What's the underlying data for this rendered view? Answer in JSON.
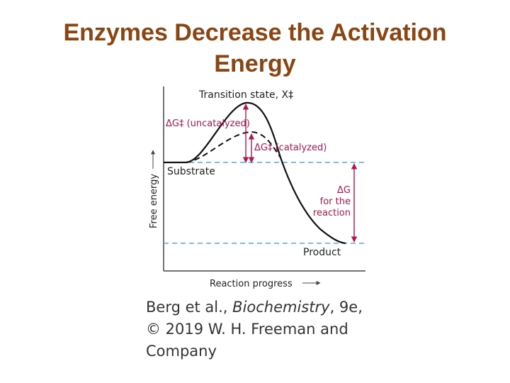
{
  "title": {
    "line1": "Enzymes Decrease the Activation",
    "line2": "Energy"
  },
  "diagram": {
    "transition_state_label": "Transition state, X‡",
    "uncatalyzed_label": "ΔG‡ (uncatalyzed)",
    "catalyzed_label": "ΔG‡ (catalyzed)",
    "substrate_label": "Substrate",
    "product_label": "Product",
    "dg_reaction_label": [
      "ΔG",
      "for the",
      "reaction"
    ],
    "y_axis_label": "Free energy",
    "x_axis_label": "Reaction progress",
    "colors": {
      "axis": "#444444",
      "uncatalyzed_curve": "#111111",
      "catalyzed_curve": "#111111",
      "reference_lines": "#5aa9d6",
      "delta_arrows": "#b0174f"
    }
  },
  "credit": {
    "line1_prefix": "Berg et al., ",
    "line1_italic": "Biochemistry",
    "line1_suffix": ", 9e,",
    "line2": "© 2019 W. H. Freeman and",
    "line3": "Company"
  }
}
